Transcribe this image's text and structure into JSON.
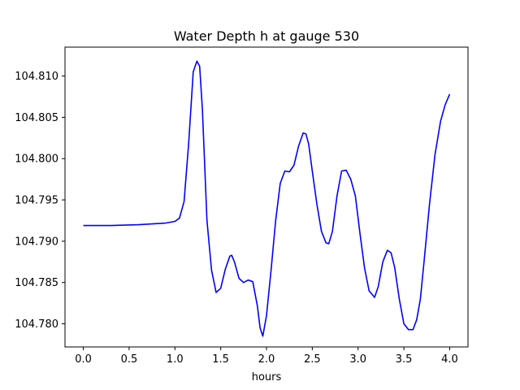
{
  "chart_data": {
    "type": "line",
    "title": "Water Depth h at gauge 530",
    "xlabel": "hours",
    "ylabel": "",
    "xlim": [
      -0.2,
      4.2
    ],
    "ylim": [
      104.7772,
      104.8135
    ],
    "x_ticks": [
      "0.0",
      "0.5",
      "1.0",
      "1.5",
      "2.0",
      "2.5",
      "3.0",
      "3.5",
      "4.0"
    ],
    "y_ticks": [
      "104.780",
      "104.785",
      "104.790",
      "104.795",
      "104.800",
      "104.805",
      "104.810"
    ],
    "grid": false,
    "line_color": "#0000ff",
    "series": [
      {
        "name": "",
        "x": [
          0.0,
          0.3,
          0.6,
          0.9,
          1.0,
          1.05,
          1.1,
          1.15,
          1.2,
          1.24,
          1.27,
          1.3,
          1.35,
          1.4,
          1.45,
          1.5,
          1.55,
          1.6,
          1.62,
          1.65,
          1.7,
          1.75,
          1.8,
          1.85,
          1.9,
          1.93,
          1.96,
          2.0,
          2.05,
          2.1,
          2.15,
          2.2,
          2.25,
          2.3,
          2.35,
          2.4,
          2.43,
          2.46,
          2.5,
          2.55,
          2.6,
          2.65,
          2.68,
          2.72,
          2.77,
          2.82,
          2.87,
          2.92,
          2.97,
          3.02,
          3.07,
          3.12,
          3.18,
          3.22,
          3.27,
          3.32,
          3.36,
          3.4,
          3.45,
          3.5,
          3.55,
          3.6,
          3.64,
          3.68,
          3.72,
          3.78,
          3.84,
          3.9,
          3.95,
          4.0
        ],
        "y": [
          104.7919,
          104.7919,
          104.792,
          104.7922,
          104.7924,
          104.7928,
          104.7948,
          104.8018,
          104.8105,
          104.8118,
          104.8112,
          104.806,
          104.7925,
          104.7865,
          104.7838,
          104.7843,
          104.7866,
          104.7882,
          104.7883,
          104.7875,
          104.7855,
          104.785,
          104.7853,
          104.7851,
          104.7822,
          104.7795,
          104.7785,
          104.781,
          104.7865,
          104.7925,
          104.797,
          104.7985,
          104.7984,
          104.7992,
          104.8015,
          104.8031,
          104.803,
          104.8018,
          104.7985,
          104.7945,
          104.7912,
          104.7898,
          104.7897,
          104.7912,
          104.7955,
          104.7985,
          104.7986,
          104.7975,
          104.7955,
          104.791,
          104.7868,
          104.784,
          104.7832,
          104.7845,
          104.7875,
          104.7889,
          104.7886,
          104.7868,
          104.783,
          104.78,
          104.7793,
          104.7793,
          104.7805,
          104.783,
          104.7875,
          104.7945,
          104.8005,
          104.8045,
          104.8065,
          104.8078
        ]
      }
    ]
  }
}
